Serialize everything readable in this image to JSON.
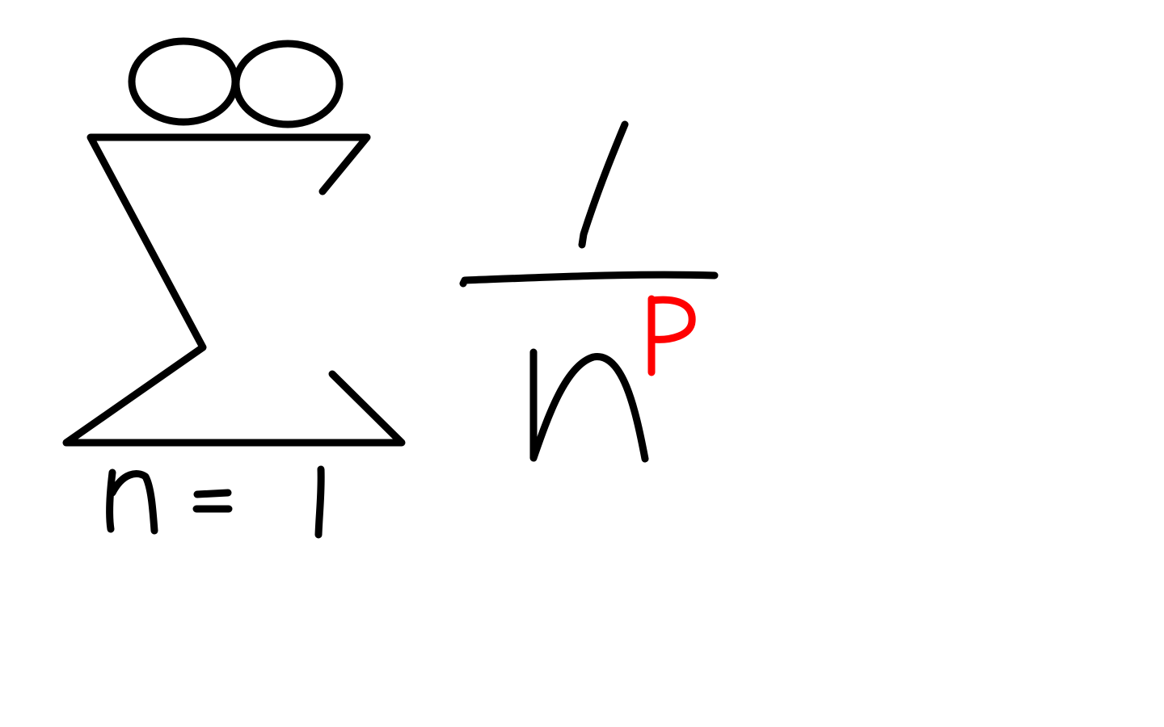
{
  "canvas": {
    "background": "#ffffff"
  },
  "expression": {
    "summation": {
      "upper_limit": "∞",
      "symbol": "Σ",
      "lower_limit": {
        "variable": "n",
        "operator": "=",
        "value": "1"
      }
    },
    "fraction": {
      "numerator": "1",
      "denominator": {
        "base": "n",
        "exponent": "p"
      }
    }
  },
  "colors": {
    "ink": "#000000",
    "exponent": "#ff0000"
  }
}
